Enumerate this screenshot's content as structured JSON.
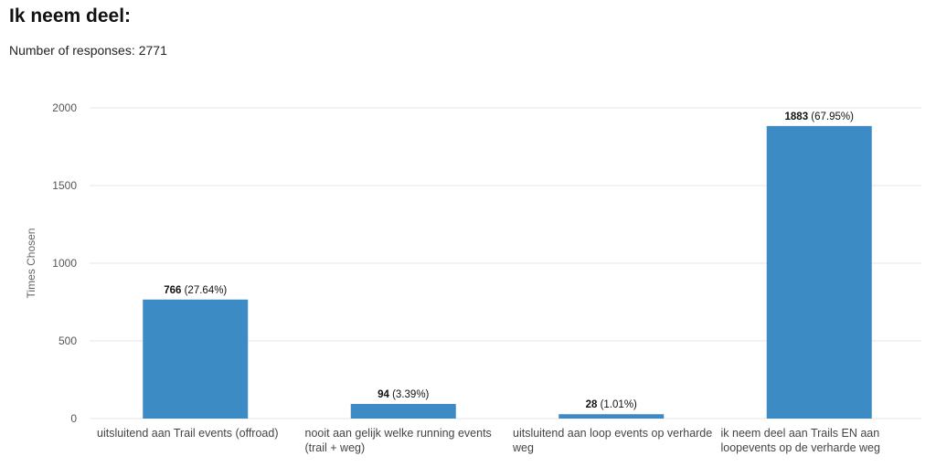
{
  "header": {
    "title": "Ik neem deel:",
    "responses_label": "Number of responses:",
    "responses_count": "2771"
  },
  "chart_data": {
    "type": "bar",
    "categories": [
      [
        "uitsluitend aan Trail events (offroad)"
      ],
      [
        "nooit aan gelijk welke running events",
        "(trail + weg)"
      ],
      [
        "uitsluitend aan loop events op verharde",
        "weg"
      ],
      [
        "ik neem deel aan Trails EN aan",
        "loopevents op de verharde weg"
      ]
    ],
    "values": [
      766,
      94,
      28,
      1883
    ],
    "percentages": [
      "(27.64%)",
      "(3.39%)",
      "(1.01%)",
      "(67.95%)"
    ],
    "ylabel": "Times Chosen",
    "yticks": [
      0,
      500,
      1000,
      1500,
      2000
    ],
    "ylim": [
      0,
      2000
    ],
    "grid": true,
    "bar_color": "#3d8bc4"
  }
}
